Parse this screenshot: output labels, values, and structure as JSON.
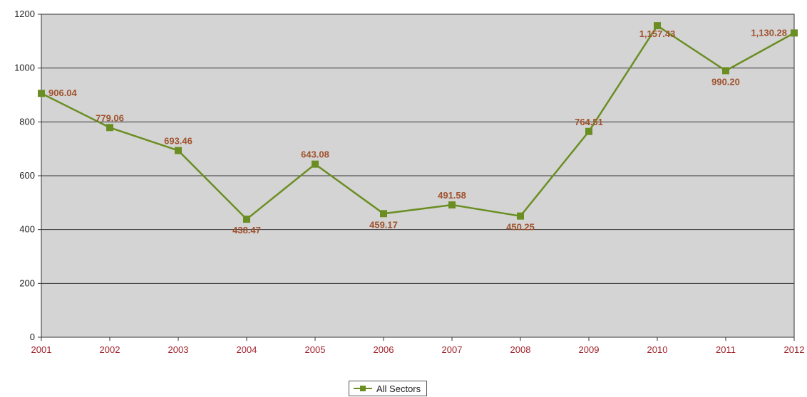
{
  "chart_data": {
    "type": "line",
    "title": "",
    "xlabel": "",
    "ylabel": "",
    "x": [
      "2001",
      "2002",
      "2003",
      "2004",
      "2005",
      "2006",
      "2007",
      "2008",
      "2009",
      "2010",
      "2011",
      "2012"
    ],
    "series": [
      {
        "name": "All Sectors",
        "values": [
          906.04,
          779.06,
          693.46,
          438.47,
          643.08,
          459.17,
          491.58,
          450.25,
          764.51,
          1157.43,
          990.2,
          1130.28
        ],
        "labels": [
          "906.04",
          "779.06",
          "693.46",
          "438.47",
          "643.08",
          "459.17",
          "491.58",
          "450.25",
          "764.51",
          "1,157.43",
          "990.20",
          "1,130.28"
        ],
        "color": "#6b8e23"
      }
    ],
    "ylim": [
      0,
      1200
    ],
    "yticks": [
      "0",
      "200",
      "400",
      "600",
      "800",
      "1000",
      "1200"
    ],
    "grid": true,
    "plot_background": "#d4d4d4",
    "label_color": "#a0522d",
    "x_tick_color": "#a0202a",
    "legend_position": "bottom-center"
  }
}
